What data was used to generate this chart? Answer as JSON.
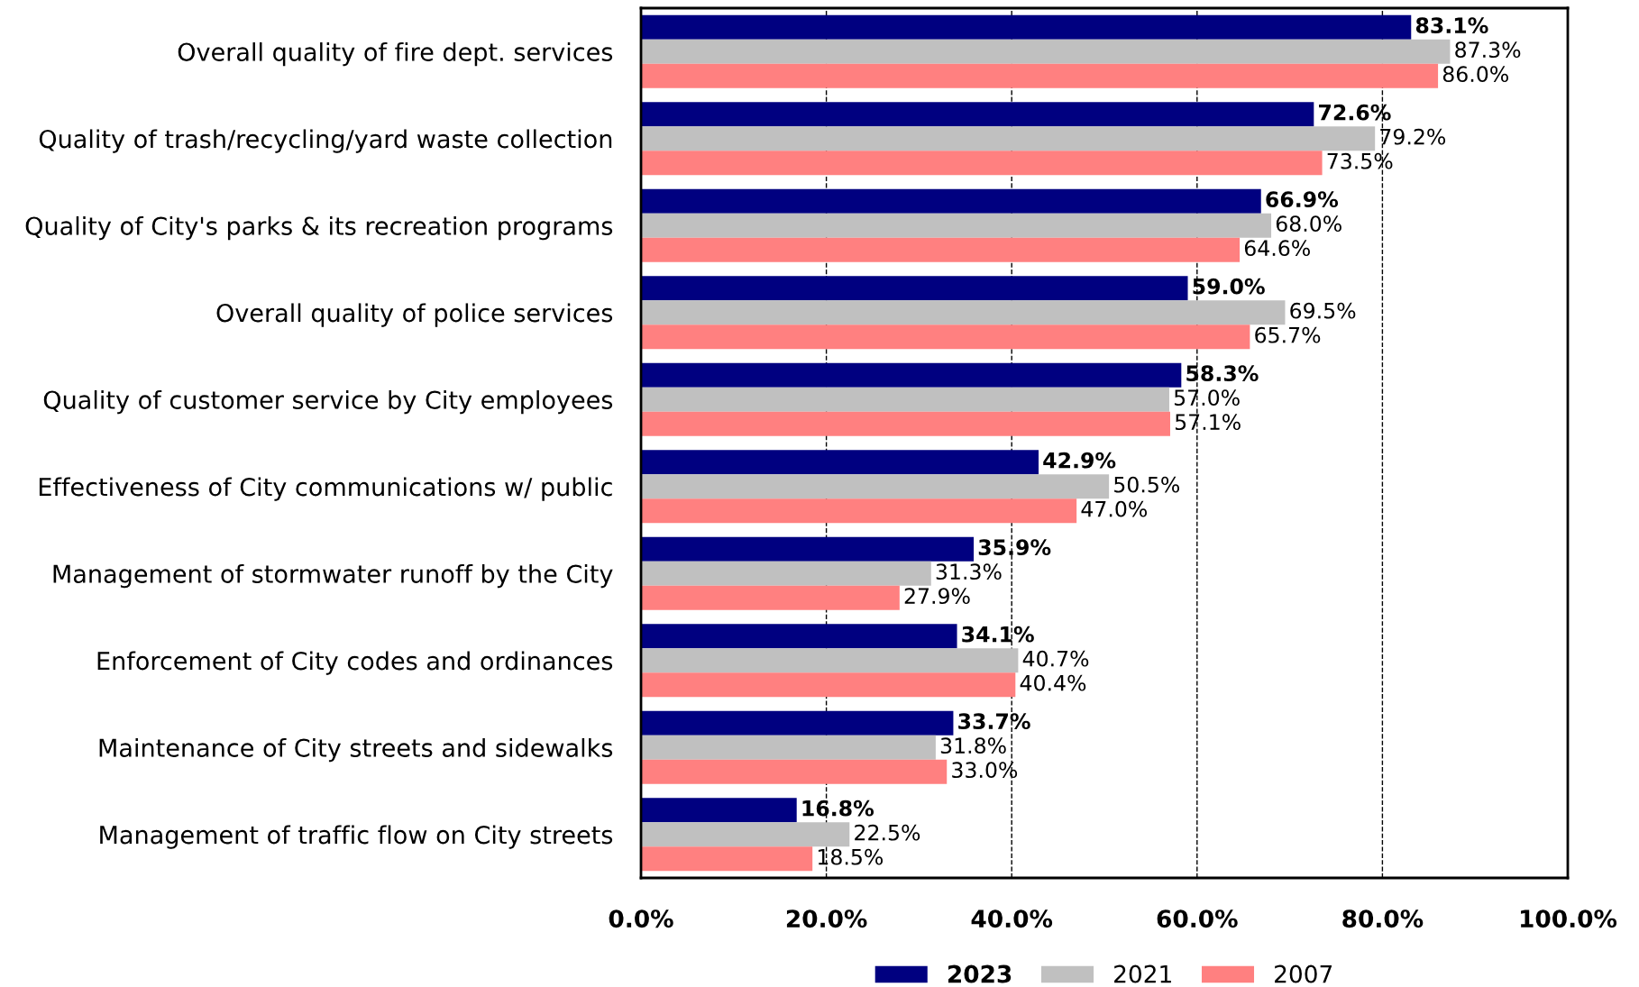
{
  "chart_data": {
    "type": "bar",
    "orientation": "horizontal",
    "categories": [
      "Overall quality of fire dept. services",
      "Quality of trash/recycling/yard waste collection",
      "Quality of City's parks & its recreation programs",
      "Overall quality of police services",
      "Quality of customer service by City employees",
      "Effectiveness of City communications w/ public",
      "Management of stormwater runoff by the City",
      "Enforcement of City codes and ordinances",
      "Maintenance of City streets and sidewalks",
      "Management of traffic flow on City streets"
    ],
    "series": [
      {
        "name": "2023",
        "color": "#000080",
        "values": [
          83.1,
          72.6,
          66.9,
          59.0,
          58.3,
          42.9,
          35.9,
          34.1,
          33.7,
          16.8
        ],
        "value_labels": [
          "83.1%",
          "72.6%",
          "66.9%",
          "59.0%",
          "58.3%",
          "42.9%",
          "35.9%",
          "34.1%",
          "33.7%",
          "16.8%"
        ]
      },
      {
        "name": "2021",
        "color": "#c0c0c0",
        "values": [
          87.3,
          79.2,
          68.0,
          69.5,
          57.0,
          50.5,
          31.3,
          40.7,
          31.8,
          22.5
        ],
        "value_labels": [
          "87.3%",
          "79.2%",
          "68.0%",
          "69.5%",
          "57.0%",
          "50.5%",
          "31.3%",
          "40.7%",
          "31.8%",
          "22.5%"
        ]
      },
      {
        "name": "2007",
        "color": "#ff8080",
        "values": [
          86.0,
          73.5,
          64.6,
          65.7,
          57.1,
          47.0,
          27.9,
          40.4,
          33.0,
          18.5
        ],
        "value_labels": [
          "86.0%",
          "73.5%",
          "64.6%",
          "65.7%",
          "57.1%",
          "47.0%",
          "27.9%",
          "40.4%",
          "33.0%",
          "18.5%"
        ]
      }
    ],
    "xlim": [
      0,
      100
    ],
    "xticks": [
      {
        "value": 0,
        "label": "0.0%"
      },
      {
        "value": 20,
        "label": "20.0%"
      },
      {
        "value": 40,
        "label": "40.0%"
      },
      {
        "value": 60,
        "label": "60.0%"
      },
      {
        "value": 80,
        "label": "80.0%"
      },
      {
        "value": 100,
        "label": "100.0%"
      }
    ],
    "grid": "x",
    "legend": "bottom"
  }
}
